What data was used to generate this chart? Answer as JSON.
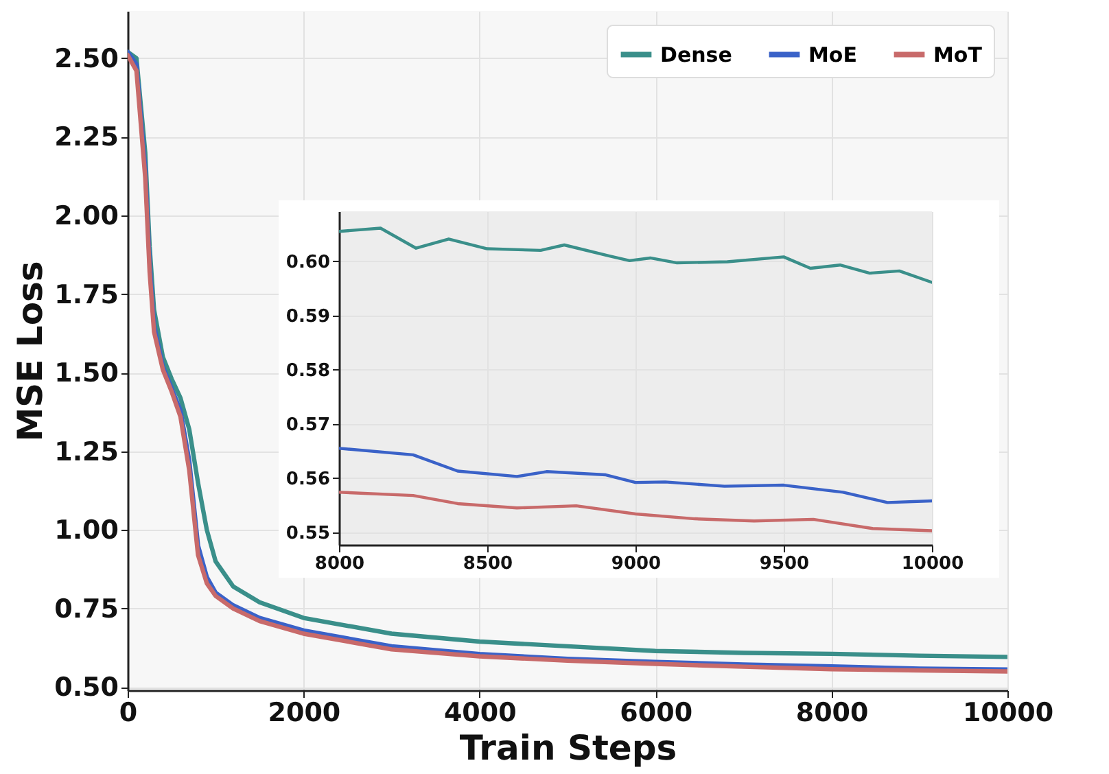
{
  "chart_data": [
    {
      "type": "line",
      "xlabel": "Train Steps",
      "ylabel": "MSE Loss",
      "xlim": [
        0,
        10000
      ],
      "ylim": [
        0.49,
        2.65
      ],
      "xticks": [
        0,
        2000,
        4000,
        6000,
        8000,
        10000
      ],
      "yticks": [
        {
          "value": 0.5,
          "label": "0.50"
        },
        {
          "value": 0.75,
          "label": "0.75"
        },
        {
          "value": 1,
          "label": "1.00"
        },
        {
          "value": 1.25,
          "label": "1.25"
        },
        {
          "value": 1.5,
          "label": "1.50"
        },
        {
          "value": 1.75,
          "label": "1.75"
        },
        {
          "value": 2,
          "label": "2.00"
        },
        {
          "value": 2.25,
          "label": "2.25"
        },
        {
          "value": 2.5,
          "label": "2.50"
        }
      ],
      "grid": true,
      "legend": "top right",
      "x": [
        0,
        100,
        200,
        250,
        300,
        400,
        500,
        600,
        700,
        800,
        900,
        1000,
        1200,
        1500,
        2000,
        3000,
        4000,
        5000,
        6000,
        7000,
        8000,
        9000,
        10000
      ],
      "series": [
        {
          "name": "Dense",
          "color": "#3a8f8a",
          "values": [
            2.52,
            2.5,
            2.2,
            1.9,
            1.7,
            1.55,
            1.48,
            1.42,
            1.32,
            1.15,
            1.0,
            0.9,
            0.82,
            0.77,
            0.72,
            0.67,
            0.645,
            0.63,
            0.615,
            0.609,
            0.606,
            0.6,
            0.596
          ]
        },
        {
          "name": "MoE",
          "color": "#3a62c8",
          "values": [
            2.52,
            2.48,
            2.15,
            1.85,
            1.65,
            1.52,
            1.45,
            1.38,
            1.22,
            0.95,
            0.85,
            0.8,
            0.76,
            0.72,
            0.68,
            0.63,
            0.605,
            0.59,
            0.58,
            0.572,
            0.566,
            0.559,
            0.556
          ]
        },
        {
          "name": "MoT",
          "color": "#c86a6a",
          "values": [
            2.51,
            2.46,
            2.12,
            1.82,
            1.63,
            1.51,
            1.44,
            1.36,
            1.19,
            0.92,
            0.83,
            0.79,
            0.75,
            0.71,
            0.67,
            0.62,
            0.598,
            0.584,
            0.574,
            0.565,
            0.557,
            0.553,
            0.55
          ]
        }
      ]
    },
    {
      "type": "line",
      "xlim": [
        8000,
        10000
      ],
      "ylim": [
        0.5477,
        0.6092
      ],
      "xticks": [
        8000,
        8500,
        9000,
        9500,
        10000
      ],
      "yticks": [
        {
          "value": 0.55,
          "label": "0.55"
        },
        {
          "value": 0.56,
          "label": "0.56"
        },
        {
          "value": 0.57,
          "label": "0.57"
        },
        {
          "value": 0.58,
          "label": "0.58"
        },
        {
          "value": 0.59,
          "label": "0.59"
        },
        {
          "value": 0.6,
          "label": "0.60"
        }
      ],
      "grid": true,
      "series": [
        {
          "color": "#3a8f8a",
          "x": [
            8000,
            8140,
            8260,
            8370,
            8500,
            8680,
            8760,
            8910,
            8980,
            9050,
            9140,
            9310,
            9500,
            9590,
            9690,
            9790,
            9890,
            10000
          ],
          "values": [
            0.6055,
            0.6061,
            0.6024,
            0.6041,
            0.6023,
            0.602,
            0.603,
            0.601,
            0.6001,
            0.6006,
            0.5997,
            0.5999,
            0.6008,
            0.5987,
            0.5993,
            0.5978,
            0.5982,
            0.5961
          ]
        },
        {
          "color": "#3a62c8",
          "x": [
            8000,
            8250,
            8400,
            8600,
            8700,
            8900,
            9000,
            9100,
            9300,
            9500,
            9700,
            9850,
            10000
          ],
          "values": [
            0.5655,
            0.5643,
            0.5613,
            0.5603,
            0.5612,
            0.5606,
            0.5592,
            0.5593,
            0.5585,
            0.5587,
            0.5574,
            0.5555,
            0.5558
          ]
        },
        {
          "color": "#c86a6a",
          "x": [
            8000,
            8250,
            8400,
            8600,
            8800,
            9000,
            9200,
            9400,
            9600,
            9800,
            10000
          ],
          "values": [
            0.5574,
            0.5568,
            0.5553,
            0.5545,
            0.5549,
            0.5534,
            0.5525,
            0.5521,
            0.5524,
            0.5507,
            0.5503
          ]
        }
      ]
    }
  ]
}
